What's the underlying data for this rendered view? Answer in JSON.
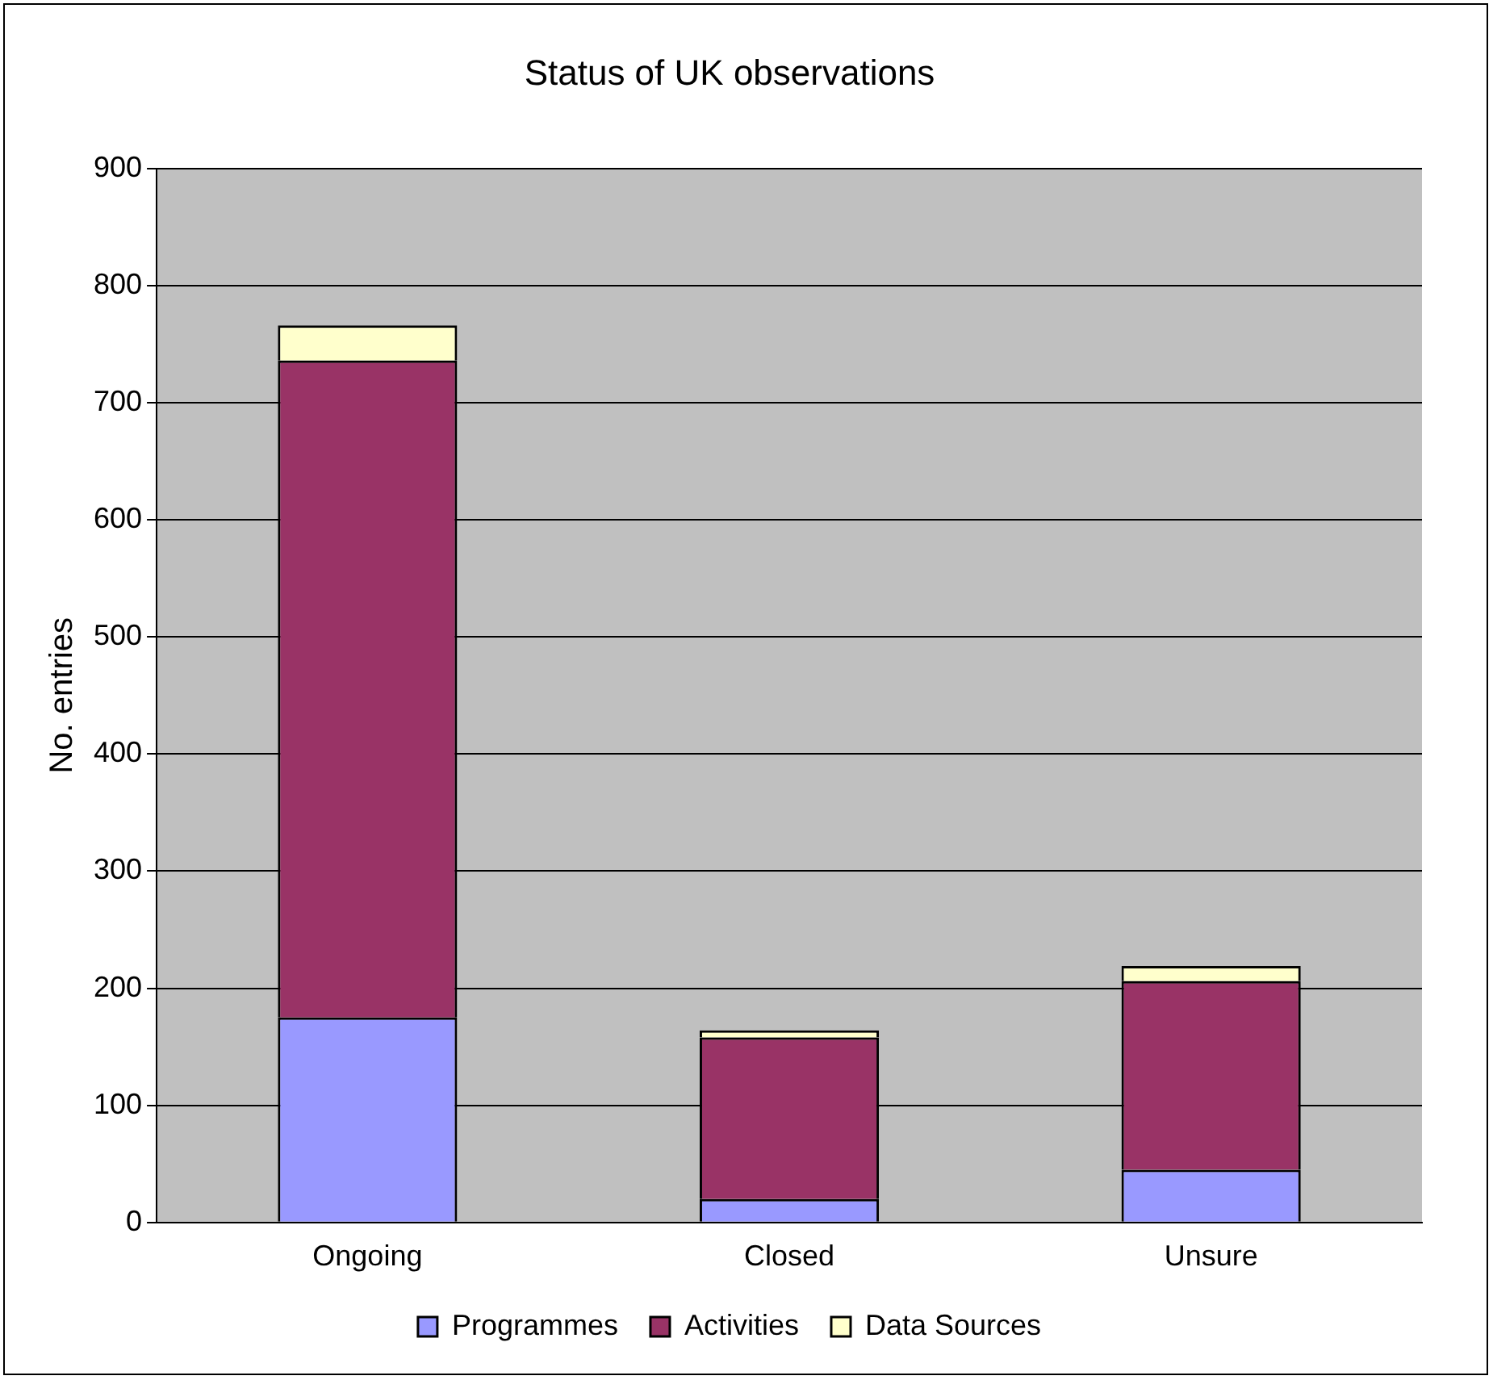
{
  "chart_data": {
    "type": "bar",
    "title": "Status of UK observations",
    "ylabel": "No. entries",
    "categories": [
      "Ongoing",
      "Closed",
      "Unsure"
    ],
    "stacked": true,
    "series": [
      {
        "name": "Programmes",
        "color": "#9999ff",
        "values": [
          175,
          20,
          45
        ]
      },
      {
        "name": "Activities",
        "color": "#993366",
        "values": [
          561,
          138,
          161
        ]
      },
      {
        "name": "Data Sources",
        "color": "#ffffcc",
        "values": [
          30,
          6,
          13
        ]
      }
    ],
    "ylim": [
      0,
      900
    ],
    "yticks": [
      0,
      100,
      200,
      300,
      400,
      500,
      600,
      700,
      800,
      900
    ],
    "grid": "y",
    "legend": "bottom"
  }
}
